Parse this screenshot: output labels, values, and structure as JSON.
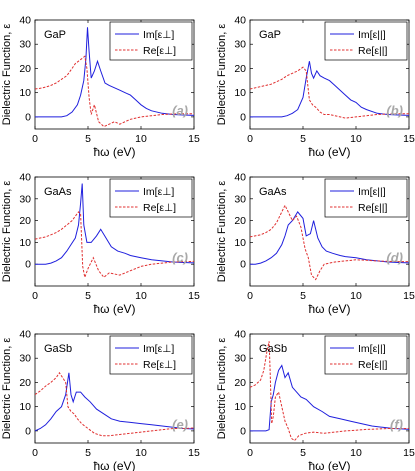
{
  "figure": {
    "ylabel": "Dielectric Function, ε",
    "xlabel": "ħω  (eV)",
    "x_ticks": [
      "0",
      "5",
      "10",
      "15"
    ],
    "colors": {
      "imag": "#1f1fdd",
      "real": "#e03030"
    }
  },
  "chart_data": [
    {
      "type": "line",
      "id": "a",
      "material": "GaP",
      "panel_label": "(a)",
      "x_range": [
        0,
        15
      ],
      "y_range": [
        -5,
        40
      ],
      "y_ticks": [
        0,
        10,
        20,
        30,
        40
      ],
      "legend": [
        "Im[ε⊥]",
        "Re[ε⊥]"
      ],
      "series": [
        {
          "role": "imag",
          "x": [
            0,
            1,
            2,
            2.5,
            3,
            3.5,
            4,
            4.3,
            4.6,
            4.8,
            4.95,
            5.1,
            5.3,
            5.6,
            5.9,
            6.2,
            6.6,
            7,
            7.5,
            8,
            8.5,
            9,
            9.5,
            10,
            10.5,
            11,
            12,
            13,
            14,
            15
          ],
          "y": [
            0,
            0,
            0,
            0,
            0.5,
            2,
            5,
            9,
            15,
            24,
            37,
            27,
            16,
            19,
            23,
            19,
            14,
            13,
            12,
            11,
            10,
            9,
            7,
            5,
            3.5,
            2.5,
            1.5,
            1,
            0.8,
            0.6
          ]
        },
        {
          "role": "real",
          "x": [
            0,
            0.5,
            1,
            1.5,
            2,
            2.5,
            3,
            3.5,
            3.8,
            4.1,
            4.4,
            4.7,
            4.9,
            5.1,
            5.3,
            5.6,
            6,
            6.5,
            7,
            7.5,
            8,
            8.5,
            9,
            10,
            11,
            12,
            13,
            14,
            15
          ],
          "y": [
            11.5,
            11.8,
            12.3,
            13,
            14,
            15.5,
            17,
            20,
            22,
            23,
            24,
            25,
            20,
            8,
            1,
            5,
            -2,
            -4,
            -3,
            -2,
            -3,
            -2,
            -1,
            0,
            0.5,
            1,
            1.2,
            1.3,
            1.3
          ]
        }
      ]
    },
    {
      "type": "line",
      "id": "b",
      "material": "GaP",
      "panel_label": "(b)",
      "x_range": [
        0,
        15
      ],
      "y_range": [
        -5,
        40
      ],
      "y_ticks": [
        0,
        10,
        20,
        30,
        40
      ],
      "legend": [
        "Im[ε||]",
        "Re[ε||]"
      ],
      "series": [
        {
          "role": "imag",
          "x": [
            0,
            2,
            3,
            3.5,
            4,
            4.5,
            5,
            5.3,
            5.6,
            5.8,
            6,
            6.3,
            6.6,
            7,
            7.5,
            8,
            8.5,
            9,
            9.5,
            10,
            10.5,
            11,
            12,
            13,
            14,
            15
          ],
          "y": [
            0,
            0,
            0,
            0.5,
            1.5,
            3,
            8,
            16,
            23,
            18,
            16,
            19,
            17,
            16,
            15,
            13,
            11,
            9,
            7,
            6,
            4,
            3,
            1.5,
            1,
            0.8,
            0.6
          ]
        },
        {
          "role": "real",
          "x": [
            0,
            1,
            2,
            3,
            3.5,
            4,
            4.5,
            5,
            5.3,
            5.6,
            5.9,
            6.2,
            6.6,
            7,
            7.5,
            8,
            8.5,
            9,
            10,
            11,
            12,
            13,
            14,
            15
          ],
          "y": [
            11.5,
            12.5,
            13.5,
            15.5,
            17,
            18,
            19,
            20.5,
            19,
            7,
            5,
            4,
            2,
            1,
            1,
            0.5,
            0,
            -0.5,
            0,
            0.5,
            1,
            1.2,
            1.3,
            1.3
          ]
        }
      ]
    },
    {
      "type": "line",
      "id": "c",
      "material": "GaAs",
      "panel_label": "(c)",
      "x_range": [
        0,
        15
      ],
      "y_range": [
        -10,
        40
      ],
      "y_ticks": [
        0,
        10,
        20,
        30,
        40
      ],
      "legend": [
        "Im[ε⊥]",
        "Re[ε⊥]"
      ],
      "series": [
        {
          "role": "imag",
          "x": [
            0,
            1,
            1.5,
            2,
            2.5,
            3,
            3.4,
            3.8,
            4.1,
            4.3,
            4.45,
            4.6,
            4.9,
            5.3,
            5.8,
            6.2,
            6.7,
            7.2,
            7.8,
            8.5,
            9,
            10,
            11,
            12,
            13,
            14,
            15
          ],
          "y": [
            0,
            0,
            0.5,
            1.5,
            3,
            6,
            9,
            12,
            18,
            28,
            37,
            18,
            10,
            10,
            13,
            16,
            12,
            8,
            6,
            5,
            4,
            3,
            2,
            1.5,
            1,
            0.8,
            0.6
          ]
        },
        {
          "role": "real",
          "x": [
            0,
            0.5,
            1,
            1.5,
            2,
            2.5,
            3,
            3.5,
            3.8,
            4.1,
            4.3,
            4.5,
            4.7,
            5,
            5.5,
            6,
            6.5,
            7,
            8,
            9,
            10,
            11,
            12,
            13,
            14,
            15
          ],
          "y": [
            11.5,
            12,
            12.5,
            13.5,
            14.5,
            16,
            18,
            20,
            22,
            24,
            23,
            -1,
            -6,
            -2,
            3,
            -3,
            -6,
            -4,
            -5,
            -3,
            -1,
            0,
            0.5,
            1,
            1.2,
            1.3
          ]
        }
      ]
    },
    {
      "type": "line",
      "id": "d",
      "material": "GaAs",
      "panel_label": "(d)",
      "x_range": [
        0,
        15
      ],
      "y_range": [
        -10,
        40
      ],
      "y_ticks": [
        0,
        10,
        20,
        30,
        40
      ],
      "legend": [
        "Im[ε||]",
        "Re[ε||]"
      ],
      "series": [
        {
          "role": "imag",
          "x": [
            0,
            0.5,
            1,
            1.5,
            2,
            2.5,
            3,
            3.3,
            3.6,
            4,
            4.5,
            5,
            5.3,
            5.7,
            6,
            6.4,
            6.8,
            7.2,
            7.8,
            8.5,
            9,
            10,
            11,
            12,
            13,
            14,
            15
          ],
          "y": [
            0,
            0,
            0.5,
            1.5,
            3,
            5,
            9,
            13,
            18,
            20,
            24,
            21,
            13,
            14,
            20,
            12,
            8,
            6,
            5,
            4,
            3.5,
            3,
            2,
            1.5,
            1,
            0.8,
            0.6
          ]
        },
        {
          "role": "real",
          "x": [
            0,
            1,
            1.5,
            2,
            2.5,
            3,
            3.3,
            3.6,
            4,
            4.4,
            4.8,
            5.2,
            5.5,
            5.8,
            6.2,
            6.6,
            7,
            7.5,
            8,
            9,
            10,
            11,
            12,
            13,
            14,
            15
          ],
          "y": [
            12.5,
            13.5,
            14.5,
            16,
            19,
            24,
            27,
            24,
            20,
            22,
            17,
            7,
            3,
            -5,
            -7,
            -3,
            0,
            0.5,
            1,
            1.5,
            2,
            1.8,
            1.5,
            1.3,
            1.2,
            1.2
          ]
        }
      ]
    },
    {
      "type": "line",
      "id": "e",
      "material": "GaSb",
      "panel_label": "(e)",
      "x_range": [
        0,
        15
      ],
      "y_range": [
        -5,
        40
      ],
      "y_ticks": [
        0,
        10,
        20,
        30,
        40
      ],
      "legend": [
        "Im[ε⊥]",
        "Re[ε⊥]"
      ],
      "series": [
        {
          "role": "imag",
          "x": [
            0,
            0.5,
            1,
            1.5,
            2,
            2.5,
            2.9,
            3.2,
            3.4,
            3.6,
            3.9,
            4.3,
            4.7,
            5.2,
            5.8,
            6.5,
            7.2,
            8,
            9,
            10,
            11,
            12,
            13,
            14,
            15
          ],
          "y": [
            0,
            1,
            2.5,
            5,
            8,
            10,
            15,
            24,
            15,
            12,
            16,
            16,
            14,
            12,
            9,
            7,
            5,
            4,
            3.5,
            3,
            2.5,
            2,
            1.5,
            1,
            0.8
          ]
        },
        {
          "role": "real",
          "x": [
            0,
            0.5,
            1,
            1.5,
            2,
            2.3,
            2.6,
            2.9,
            3.1,
            3.4,
            3.7,
            4,
            4.4,
            5,
            5.6,
            6.3,
            7,
            8,
            9,
            10,
            11,
            12,
            13,
            14,
            15
          ],
          "y": [
            15,
            16.5,
            18.5,
            20,
            22,
            24,
            22,
            20,
            10,
            8,
            7,
            5,
            3,
            1,
            -1,
            -2,
            -2,
            -1.5,
            -1,
            -0.5,
            0,
            0.5,
            1,
            1,
            1.2
          ]
        }
      ]
    },
    {
      "type": "line",
      "id": "f",
      "material": "GaSb",
      "panel_label": "(f)",
      "x_range": [
        0,
        15
      ],
      "y_range": [
        -5,
        40
      ],
      "y_ticks": [
        0,
        10,
        20,
        30,
        40
      ],
      "legend": [
        "Im[ε||]",
        "Re[ε||]"
      ],
      "series": [
        {
          "role": "imag",
          "x": [
            0,
            0.5,
            1,
            1.5,
            1.8,
            2,
            2.2,
            2.4,
            2.7,
            3,
            3.3,
            3.6,
            4,
            4.4,
            4.8,
            5.3,
            6,
            6.8,
            7.5,
            8.5,
            9.5,
            10.5,
            11.5,
            12.5,
            13.5,
            14.5,
            15
          ],
          "y": [
            0,
            0,
            0,
            0,
            0.5,
            12,
            15,
            20,
            25,
            27,
            22,
            24,
            18,
            16,
            14,
            13,
            10,
            8,
            6,
            5,
            4,
            3,
            2,
            1.5,
            1,
            0.8,
            0.6
          ]
        },
        {
          "role": "real",
          "x": [
            0,
            0.5,
            1,
            1.3,
            1.6,
            1.8,
            1.9,
            2.05,
            2.2,
            2.4,
            2.7,
            3,
            3.3,
            3.6,
            3.9,
            4.2,
            4.6,
            5.2,
            6,
            7,
            8,
            9,
            10,
            11,
            12,
            13,
            14,
            15
          ],
          "y": [
            18,
            19,
            21,
            25,
            33,
            37,
            25,
            3,
            6,
            14,
            16,
            10,
            4,
            1,
            -3,
            -4,
            -2,
            -1,
            -0.5,
            -1,
            -0.5,
            0,
            0.3,
            0.6,
            0.8,
            1,
            1,
            1
          ]
        }
      ]
    }
  ]
}
